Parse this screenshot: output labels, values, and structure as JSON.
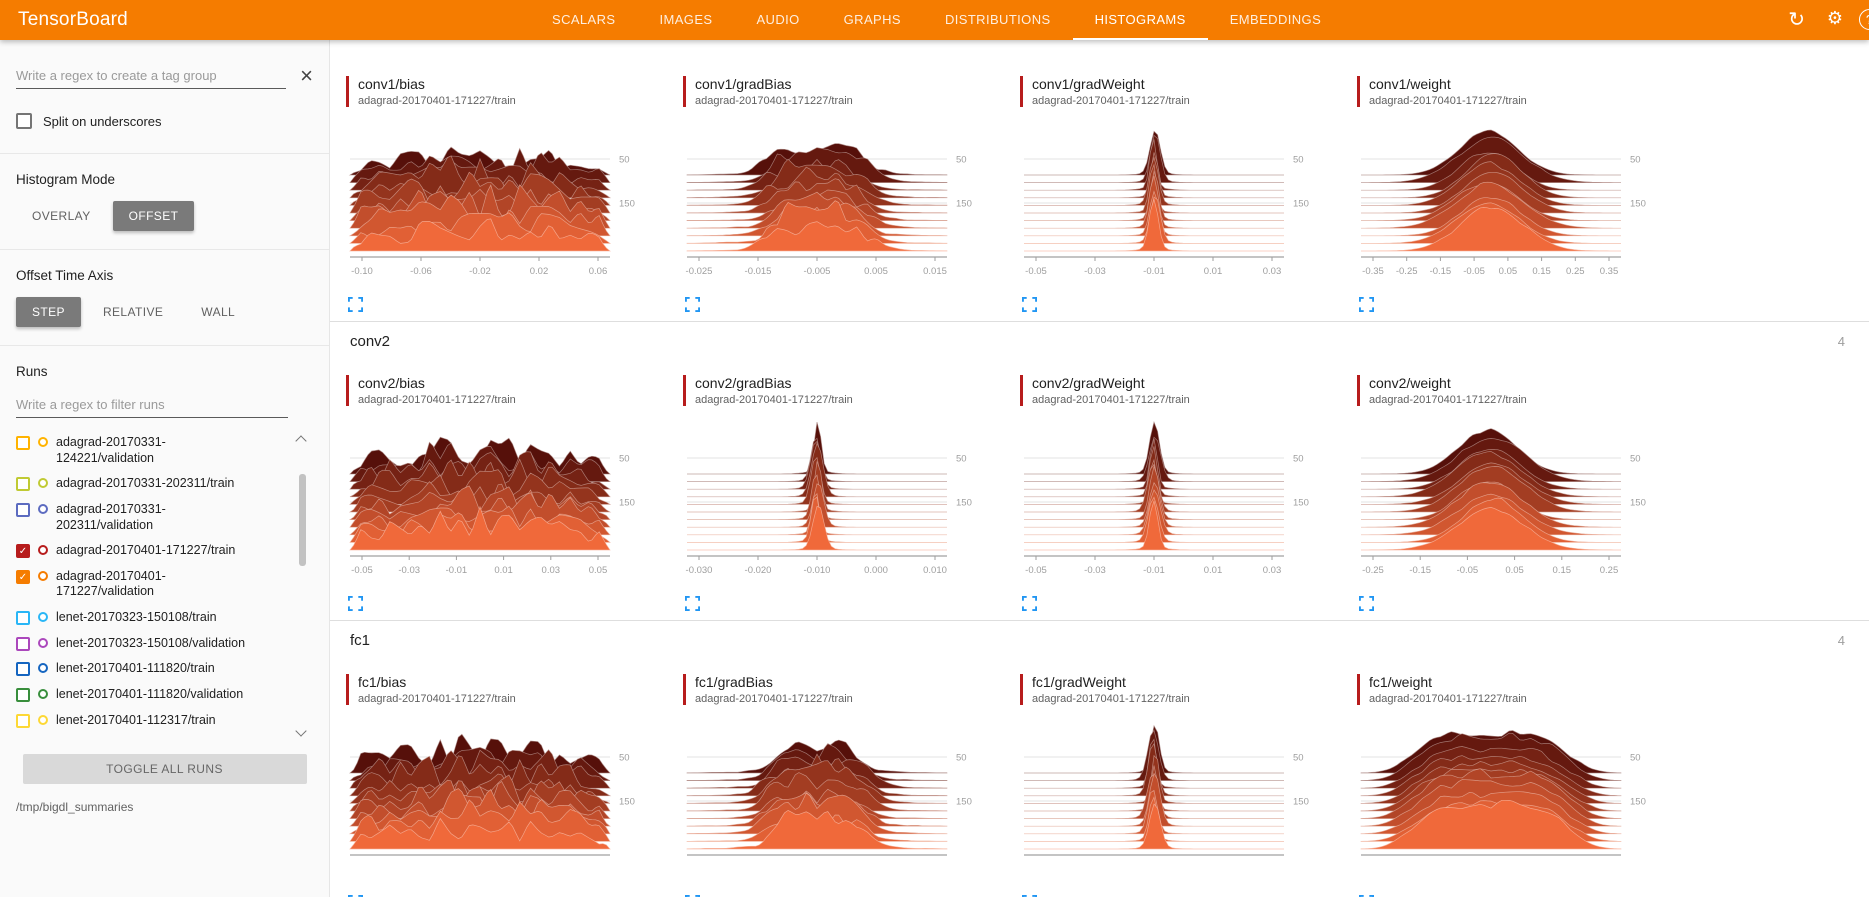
{
  "app": {
    "title": "TensorBoard"
  },
  "nav": {
    "tabs": [
      {
        "label": "SCALARS",
        "active": false
      },
      {
        "label": "IMAGES",
        "active": false
      },
      {
        "label": "AUDIO",
        "active": false
      },
      {
        "label": "GRAPHS",
        "active": false
      },
      {
        "label": "DISTRIBUTIONS",
        "active": false
      },
      {
        "label": "HISTOGRAMS",
        "active": true
      },
      {
        "label": "EMBEDDINGS",
        "active": false
      }
    ]
  },
  "sidebar": {
    "tag_regex_placeholder": "Write a regex to create a tag group",
    "split_underscores_label": "Split on underscores",
    "histogram_mode": {
      "label": "Histogram Mode",
      "options": [
        "OVERLAY",
        "OFFSET"
      ],
      "selected": "OFFSET"
    },
    "offset_time_axis": {
      "label": "Offset Time Axis",
      "options": [
        "STEP",
        "RELATIVE",
        "WALL"
      ],
      "selected": "STEP"
    },
    "runs": {
      "label": "Runs",
      "filter_placeholder": "Write a regex to filter runs",
      "toggle_all_label": "TOGGLE ALL RUNS",
      "items": [
        {
          "label": "adagrad-20170331-124221/validation",
          "color": "#ffb300",
          "checked": false
        },
        {
          "label": "adagrad-20170331-202311/train",
          "color": "#c0ca33",
          "checked": false
        },
        {
          "label": "adagrad-20170331-202311/validation",
          "color": "#5c6bc0",
          "checked": false
        },
        {
          "label": "adagrad-20170401-171227/train",
          "color": "#b71c1c",
          "checked": true
        },
        {
          "label": "adagrad-20170401-171227/validation",
          "color": "#f57c00",
          "checked": true
        },
        {
          "label": "lenet-20170323-150108/train",
          "color": "#29b6f6",
          "checked": false
        },
        {
          "label": "lenet-20170323-150108/validation",
          "color": "#ab47bc",
          "checked": false
        },
        {
          "label": "lenet-20170401-111820/train",
          "color": "#1565c0",
          "checked": false
        },
        {
          "label": "lenet-20170401-111820/validation",
          "color": "#388e3c",
          "checked": false
        },
        {
          "label": "lenet-20170401-112317/train",
          "color": "#fdd835",
          "checked": false
        }
      ]
    },
    "log_path": "/tmp/bigdl_summaries"
  },
  "main": {
    "groups": [
      {
        "name": "",
        "count": "",
        "cards": [
          {
            "title": "conv1/bias",
            "run": "adagrad-20170401-171227/train",
            "shape": "noisy",
            "xticks": [
              "-0.10",
              "-0.06",
              "-0.02",
              "0.02",
              "0.06"
            ],
            "yticks": [
              "50",
              "150"
            ]
          },
          {
            "title": "conv1/gradBias",
            "run": "adagrad-20170401-171227/train",
            "shape": "bumps",
            "xticks": [
              "-0.025",
              "-0.015",
              "-0.005",
              "0.005",
              "0.015"
            ],
            "yticks": [
              "50",
              "150"
            ]
          },
          {
            "title": "conv1/gradWeight",
            "run": "adagrad-20170401-171227/train",
            "shape": "spike",
            "xticks": [
              "-0.05",
              "-0.03",
              "-0.01",
              "0.01",
              "0.03"
            ],
            "yticks": [
              "50",
              "150"
            ]
          },
          {
            "title": "conv1/weight",
            "run": "adagrad-20170401-171227/train",
            "shape": "bell",
            "xticks": [
              "-0.35",
              "-0.25",
              "-0.15",
              "-0.05",
              "0.05",
              "0.15",
              "0.25",
              "0.35"
            ],
            "yticks": [
              "50",
              "150"
            ]
          }
        ]
      },
      {
        "name": "conv2",
        "count": "4",
        "cards": [
          {
            "title": "conv2/bias",
            "run": "adagrad-20170401-171227/train",
            "shape": "noisy",
            "xticks": [
              "-0.05",
              "-0.03",
              "-0.01",
              "0.01",
              "0.03",
              "0.05"
            ],
            "yticks": [
              "50",
              "150"
            ]
          },
          {
            "title": "conv2/gradBias",
            "run": "adagrad-20170401-171227/train",
            "shape": "spike",
            "xticks": [
              "-0.030",
              "-0.020",
              "-0.010",
              "0.000",
              "0.010"
            ],
            "yticks": [
              "50",
              "150"
            ]
          },
          {
            "title": "conv2/gradWeight",
            "run": "adagrad-20170401-171227/train",
            "shape": "spike",
            "xticks": [
              "-0.05",
              "-0.03",
              "-0.01",
              "0.01",
              "0.03"
            ],
            "yticks": [
              "50",
              "150"
            ]
          },
          {
            "title": "conv2/weight",
            "run": "adagrad-20170401-171227/train",
            "shape": "bell",
            "xticks": [
              "-0.25",
              "-0.15",
              "-0.05",
              "0.05",
              "0.15",
              "0.25"
            ],
            "yticks": [
              "50",
              "150"
            ]
          }
        ]
      },
      {
        "name": "fc1",
        "count": "4",
        "cards": [
          {
            "title": "fc1/bias",
            "run": "adagrad-20170401-171227/train",
            "shape": "noisy",
            "xticks": [],
            "yticks": [
              "50",
              "150"
            ]
          },
          {
            "title": "fc1/gradBias",
            "run": "adagrad-20170401-171227/train",
            "shape": "bumps",
            "xticks": [],
            "yticks": [
              "50",
              "150"
            ]
          },
          {
            "title": "fc1/gradWeight",
            "run": "adagrad-20170401-171227/train",
            "shape": "spike",
            "xticks": [],
            "yticks": [
              "50",
              "150"
            ]
          },
          {
            "title": "fc1/weight",
            "run": "adagrad-20170401-171227/train",
            "shape": "flatbell",
            "xticks": [],
            "yticks": [
              "50",
              "150"
            ]
          }
        ]
      }
    ]
  },
  "colors": {
    "navbar": "#f57c00",
    "button_selected": "#7a7a7a",
    "card_stripe": "#b71c1c",
    "expand_icon": "#2196f3",
    "ridge_back": "#56100a",
    "ridge_front": "#f0693a"
  }
}
